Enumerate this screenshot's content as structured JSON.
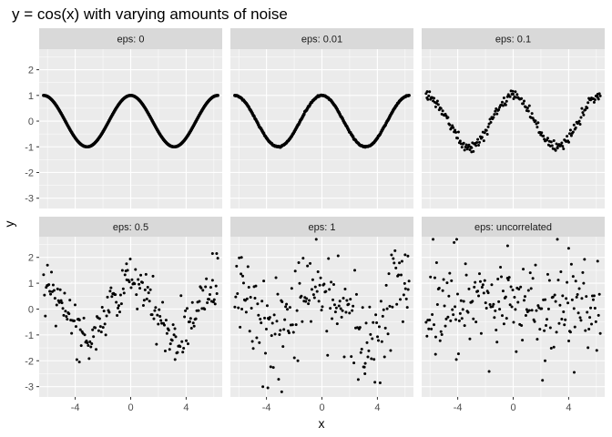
{
  "chart_data": {
    "type": "scatter",
    "title": "y = cos(x) with varying amounts of noise",
    "xlabel": "x",
    "ylabel": "y",
    "xlim": [
      -6.6,
      6.6
    ],
    "ylim": [
      -3.4,
      2.8
    ],
    "x_ticks": [
      -4,
      0,
      4
    ],
    "x_tick_labels": [
      "-4",
      "0",
      "4"
    ],
    "y_ticks": [
      -3,
      -2,
      -1,
      0,
      1,
      2
    ],
    "y_tick_labels": [
      "-3",
      "-2",
      "-1",
      "0",
      "1",
      "2"
    ],
    "grid": true,
    "facet_layout": {
      "rows": 2,
      "cols": 3
    },
    "x_range_of_points": [
      -6.28,
      6.28
    ],
    "points_per_panel": 200,
    "colors": {
      "panel_bg": "#ebebeb",
      "strip_bg": "#d9d9d9",
      "grid": "#ffffff",
      "point": "#000000"
    },
    "panels": [
      {
        "label": "eps: 0",
        "eps": 0,
        "correlated": true,
        "sample": []
      },
      {
        "label": "eps: 0.01",
        "eps": 0.01,
        "correlated": true,
        "sample": []
      },
      {
        "label": "eps: 0.1",
        "eps": 0.1,
        "correlated": true,
        "sample": [
          [
            -6.2,
            1.15
          ],
          [
            -5.9,
            0.9
          ],
          [
            -3.0,
            -1.2
          ],
          [
            0.0,
            1.05
          ],
          [
            3.2,
            -1.05
          ],
          [
            6.1,
            1.05
          ]
        ]
      },
      {
        "label": "eps: 0.5",
        "eps": 0.5,
        "correlated": true,
        "sample": [
          [
            -6.0,
            1.7
          ],
          [
            -3.7,
            -2.05
          ],
          [
            -0.3,
            1.75
          ],
          [
            3.2,
            -1.95
          ],
          [
            5.9,
            2.15
          ],
          [
            6.2,
            2.15
          ]
        ]
      },
      {
        "label": "eps: 1",
        "eps": 1,
        "correlated": true,
        "sample": [
          [
            -5.8,
            2.0
          ],
          [
            -3.9,
            -3.05
          ],
          [
            -2.9,
            -3.2
          ],
          [
            3.1,
            -2.5
          ],
          [
            6.0,
            2.1
          ],
          [
            6.2,
            2.05
          ]
        ]
      },
      {
        "label": "eps: uncorrelated",
        "eps": 1,
        "correlated": false,
        "sample": [
          [
            -0.4,
            2.45
          ],
          [
            4.0,
            2.35
          ],
          [
            4.4,
            -2.45
          ],
          [
            -5.6,
            -1.75
          ],
          [
            2.3,
            -2.0
          ],
          [
            -4.1,
            -1.95
          ]
        ]
      }
    ]
  }
}
